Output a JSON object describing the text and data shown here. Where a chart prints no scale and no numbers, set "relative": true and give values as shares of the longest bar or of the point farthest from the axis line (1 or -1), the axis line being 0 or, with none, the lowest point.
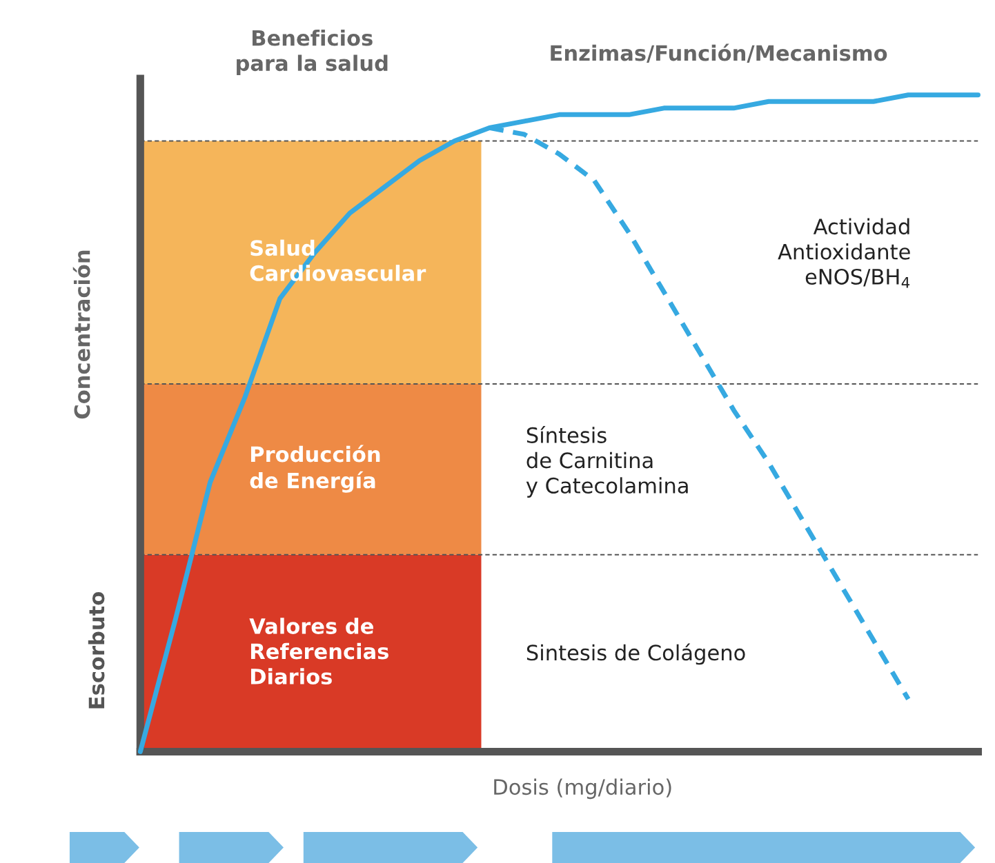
{
  "chart_data": {
    "type": "line",
    "relative": true,
    "xlabel": "Dosis (mg/diario)",
    "ylabel": "Concentración",
    "categories": [
      null,
      null,
      null,
      null,
      null,
      null,
      null,
      null,
      null,
      null,
      null,
      null,
      null,
      null,
      null,
      null,
      null,
      null,
      null,
      null,
      null,
      null,
      null,
      null,
      null
    ],
    "series": [
      {
        "color": "#36a9e1",
        "line_style": "solid",
        "values": [
          0.0,
          0.2,
          0.41,
          0.54,
          0.69,
          0.76,
          0.82,
          0.86,
          0.9,
          0.93,
          0.95,
          0.96,
          0.97,
          0.97,
          0.97,
          0.98,
          0.98,
          0.98,
          0.99,
          0.99,
          0.99,
          0.99,
          1.0,
          1.0,
          1.0
        ]
      },
      {
        "color": "#36a9e1",
        "line_style": "dashed",
        "values": [
          null,
          null,
          null,
          null,
          null,
          null,
          null,
          null,
          null,
          null,
          0.95,
          0.94,
          0.91,
          0.87,
          0.79,
          0.7,
          0.61,
          0.52,
          0.44,
          0.35,
          0.26,
          0.17,
          0.08,
          null,
          null
        ]
      }
    ],
    "bands": [
      {
        "axis": "y",
        "from": 0,
        "to": 0.3,
        "label": "Valores de\nReferencias\nDiarios",
        "color": "#d93a26"
      },
      {
        "axis": "y",
        "from": 0.3,
        "to": 0.56,
        "label": "Producción\nde Energía",
        "color": "#ee8a45"
      },
      {
        "axis": "y",
        "from": 0.56,
        "to": 0.93,
        "label": "Salud\nCardiovascular",
        "color": "#f5b55a"
      }
    ],
    "ref_lines": [
      {
        "axis": "y",
        "value": 0.3,
        "color": "#555555",
        "line_style": "dashed"
      },
      {
        "axis": "y",
        "value": 0.56,
        "color": "#555555",
        "line_style": "dashed"
      },
      {
        "axis": "y",
        "value": 0.93,
        "color": "#555555",
        "line_style": "dashed"
      }
    ],
    "annotations": [
      "Beneficios\npara la salud",
      "Enzimas/Función/Mecanismo",
      "Actividad\nAntioxidante\neNOS/BH$_{4}$",
      "Síntesis\nde Carnitina\ny Catecolamina",
      "Sintesis de Colágeno",
      "Escorbuto"
    ],
    "grid": false,
    "legend": false
  }
}
